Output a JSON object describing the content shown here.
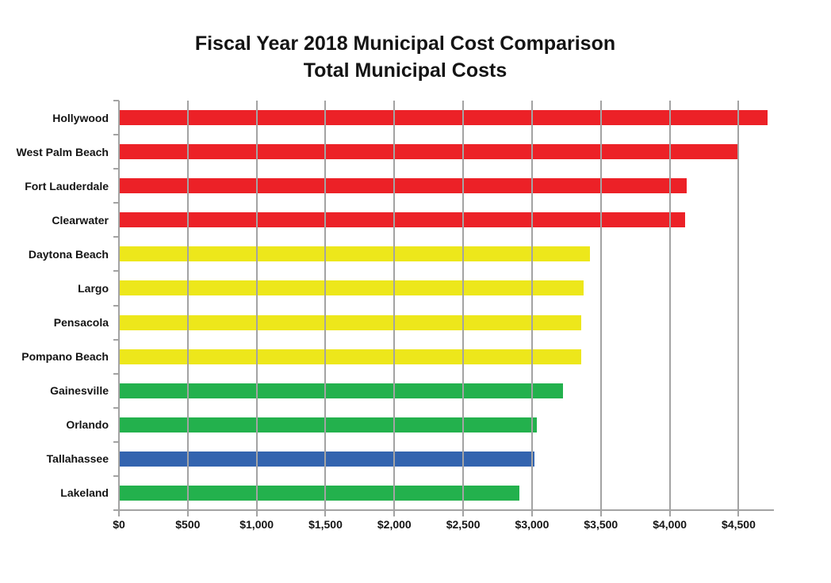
{
  "chart_data": {
    "type": "bar",
    "orientation": "horizontal",
    "title": "Fiscal Year 2018 Municipal Cost Comparison",
    "subtitle": "Total Municipal Costs",
    "categories": [
      "Hollywood",
      "West Palm Beach",
      "Fort Lauderdale",
      "Clearwater",
      "Daytona Beach",
      "Largo",
      "Pensacola",
      "Pompano Beach",
      "Gainesville",
      "Orlando",
      "Tallahassee",
      "Lakeland"
    ],
    "values": [
      4710,
      4490,
      4125,
      4110,
      3420,
      3375,
      3360,
      3355,
      3225,
      3035,
      3020,
      2910
    ],
    "bar_color_names": [
      "red",
      "red",
      "red",
      "red",
      "yellow",
      "yellow",
      "yellow",
      "yellow",
      "green",
      "green",
      "blue",
      "green"
    ],
    "xlabel": "",
    "ylabel": "",
    "xlim": [
      0,
      4745
    ],
    "x_ticks": [
      {
        "value": 0,
        "label": "$0"
      },
      {
        "value": 500,
        "label": "$500"
      },
      {
        "value": 1000,
        "label": "$1,000"
      },
      {
        "value": 1500,
        "label": "$1,500"
      },
      {
        "value": 2000,
        "label": "$2,000"
      },
      {
        "value": 2500,
        "label": "$2,500"
      },
      {
        "value": 3000,
        "label": "$3,000"
      },
      {
        "value": 3500,
        "label": "$3,500"
      },
      {
        "value": 4000,
        "label": "$4,000"
      },
      {
        "value": 4500,
        "label": "$4,500"
      }
    ],
    "grid": true,
    "gridlines_over_bars": true,
    "legend": false,
    "data_labels": false
  },
  "styles": {
    "palette": {
      "red": "#EC2127",
      "yellow": "#EDE71B",
      "green": "#23B14D",
      "blue": "#3364AF"
    },
    "axis_color": "#A3A3A3",
    "text_color": "#141414",
    "background": "#FFFFFF"
  }
}
